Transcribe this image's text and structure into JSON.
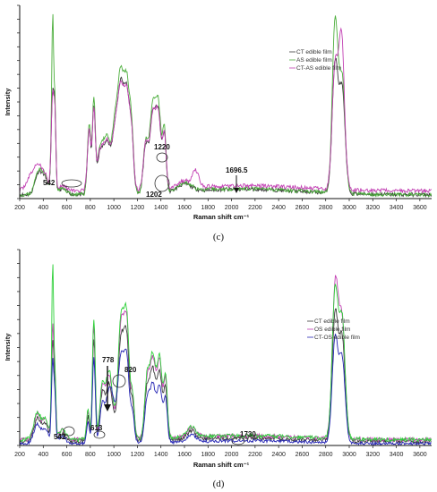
{
  "chart_data": [
    {
      "panel_label": "(c)",
      "type": "line",
      "xlabel": "Raman shift cm⁻¹",
      "ylabel": "Intensity",
      "xlim": [
        200,
        3700
      ],
      "x_ticks": [
        "200",
        "400",
        "600",
        "800",
        "1000",
        "1200",
        "1400",
        "1600",
        "1800",
        "2000",
        "2200",
        "2400",
        "2600",
        "2800",
        "3000",
        "3200",
        "3400",
        "3600"
      ],
      "grid": false,
      "legend_position": "top-right",
      "colors": {
        "series_1": "#3a3a3a",
        "series_2": "#4cae3c",
        "series_3": "#c23fb3"
      },
      "series": [
        {
          "name": "CT edible film",
          "color": "#3a3a3a"
        },
        {
          "name": "AS edible film",
          "color": "#4cae3c"
        },
        {
          "name": "CT-AS edible film",
          "color": "#c23fb3"
        }
      ],
      "annotations": [
        {
          "text": "542",
          "x": 542
        },
        {
          "text": "1220",
          "x": 1220
        },
        {
          "text": "1202",
          "x": 1202
        },
        {
          "text": "1696.5",
          "x": 1696.5
        }
      ]
    },
    {
      "panel_label": "(d)",
      "type": "line",
      "xlabel": "Raman shift cm⁻¹",
      "ylabel": "Intensity",
      "xlim": [
        200,
        3700
      ],
      "x_ticks": [
        "200",
        "400",
        "600",
        "800",
        "1000",
        "1200",
        "1400",
        "1600",
        "1800",
        "2000",
        "2200",
        "2400",
        "2600",
        "2800",
        "3000",
        "3200",
        "3400",
        "3600"
      ],
      "grid": false,
      "legend_position": "top-right",
      "colors": {
        "series_1": "#3a3a3a",
        "series_2": "#c23fb3",
        "series_3": "#2fd03a",
        "series_4": "#2424b4"
      },
      "series": [
        {
          "name": "CT edible film",
          "color": "#3a3a3a"
        },
        {
          "name": "OS edible film",
          "color": "#c23fb3"
        },
        {
          "name": "CT-OS edible film",
          "color": "#2fd03a"
        }
      ],
      "annotations": [
        {
          "text": "542",
          "x": 542
        },
        {
          "text": "613",
          "x": 613
        },
        {
          "text": "778",
          "x": 778
        },
        {
          "text": "820",
          "x": 820
        },
        {
          "text": "1730",
          "x": 1730
        }
      ]
    }
  ]
}
